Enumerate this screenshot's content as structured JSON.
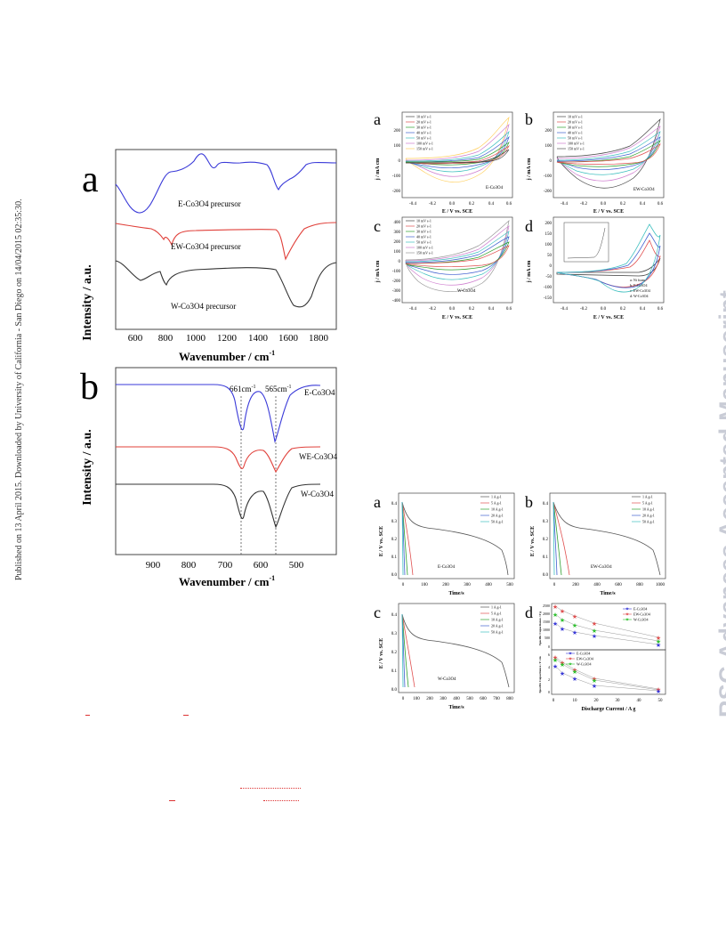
{
  "sidebar_text": "Published on 13 April 2015. Downloaded by University of California - San Diego on 14/04/2015 02:35:30.",
  "watermark": "RSC Advances Accepted Manuscript",
  "fig_ftir": {
    "letter": "a",
    "ylabel": "Intensity / a.u.",
    "xlabel": "Wavenumber / cm",
    "xlabel_sup": "-1",
    "ticks": [
      "600",
      "800",
      "1000",
      "1200",
      "1400",
      "1600",
      "1800"
    ],
    "curves": [
      {
        "label": "E-Co3O4 precursor",
        "color": "#3a3ad8"
      },
      {
        "label": "EW-Co3O4 precursor",
        "color": "#e0403a"
      },
      {
        "label": "W-Co3O4 precursor",
        "color": "#333333"
      }
    ]
  },
  "fig_ftir2": {
    "letter": "b",
    "ylabel": "Intensity / a.u.",
    "xlabel": "Wavenumber / cm",
    "xlabel_sup": "-1",
    "ticks": [
      "900",
      "800",
      "700",
      "600",
      "500"
    ],
    "peak1": "661cm",
    "peak2": "565cm",
    "peak_sup": "-1",
    "curves": [
      {
        "label": "E-Co3O4",
        "color": "#3a3ad8"
      },
      {
        "label": "WE-Co3O4",
        "color": "#e0403a"
      },
      {
        "label": "W-Co3O4",
        "color": "#333333"
      }
    ]
  },
  "cv": {
    "panels": [
      {
        "letter": "a",
        "sample": "E-Co3O4"
      },
      {
        "letter": "b",
        "sample": "EW-Co3O4"
      },
      {
        "letter": "c",
        "sample": "W-Co3O4"
      },
      {
        "letter": "d",
        "sample": ""
      }
    ],
    "ylabel": "j / mA cm",
    "xlabel": "E / V vs. SCE",
    "legend": [
      "10 mV s-1",
      "20 mV s-1",
      "30 mV s-1",
      "40 mV s-1",
      "50 mV s-1",
      "100 mV s-1",
      "150 mV s-1"
    ],
    "xticks": [
      "-0.4",
      "-0.2",
      "0.0",
      "0.2",
      "0.4",
      "0.6"
    ],
    "yticks_a": [
      "200",
      "100",
      "0",
      "-100",
      "-200"
    ],
    "yticks_c": [
      "400",
      "300",
      "200",
      "100",
      "0",
      "-100",
      "-200",
      "-300",
      "-400"
    ],
    "yticks_d": [
      "200",
      "150",
      "100",
      "50",
      "0",
      "-50",
      "-100",
      "-150"
    ],
    "legend_d": [
      "a: Ni foam",
      "b: E-Co3O4",
      "c: EW-Co3O4",
      "d: W-Co3O4"
    ]
  },
  "gcd": {
    "panels": [
      {
        "letter": "a",
        "sample": "E-Co3O4",
        "xticks": [
          "0",
          "100",
          "200",
          "300",
          "400",
          "500"
        ]
      },
      {
        "letter": "b",
        "sample": "EW-Co3O4",
        "xticks": [
          "0",
          "200",
          "400",
          "600",
          "800",
          "1000"
        ]
      },
      {
        "letter": "c",
        "sample": "W-Co3O4",
        "xticks": [
          "0",
          "100",
          "200",
          "300",
          "400",
          "500",
          "600",
          "700",
          "800"
        ]
      },
      {
        "letter": "d",
        "sample": ""
      }
    ],
    "ylabel": "E / V vs. SCE",
    "xlabel": "Time/s",
    "yticks": [
      "0.4",
      "0.3",
      "0.2",
      "0.1",
      "0.0"
    ],
    "legend": [
      "1 A g-1",
      "5 A g-1",
      "10 A g-1",
      "20 A g-1",
      "50 A g-1"
    ],
    "d_legend": [
      "E-Co3O4",
      "EW-Co3O4",
      "W-Co3O4"
    ],
    "d_xlabel": "Discharge Current / A g",
    "d_xticks": [
      "0",
      "10",
      "20",
      "30",
      "40",
      "50"
    ],
    "d_ylabel_top": "Specific Capacitance / F g",
    "d_ylabel_bot": "Specific Capacitance / F cm",
    "d_yticks_top": [
      "2500",
      "2000",
      "1500",
      "1000",
      "500",
      "0"
    ],
    "d_yticks_bot": [
      "6",
      "4",
      "2",
      "0"
    ]
  }
}
